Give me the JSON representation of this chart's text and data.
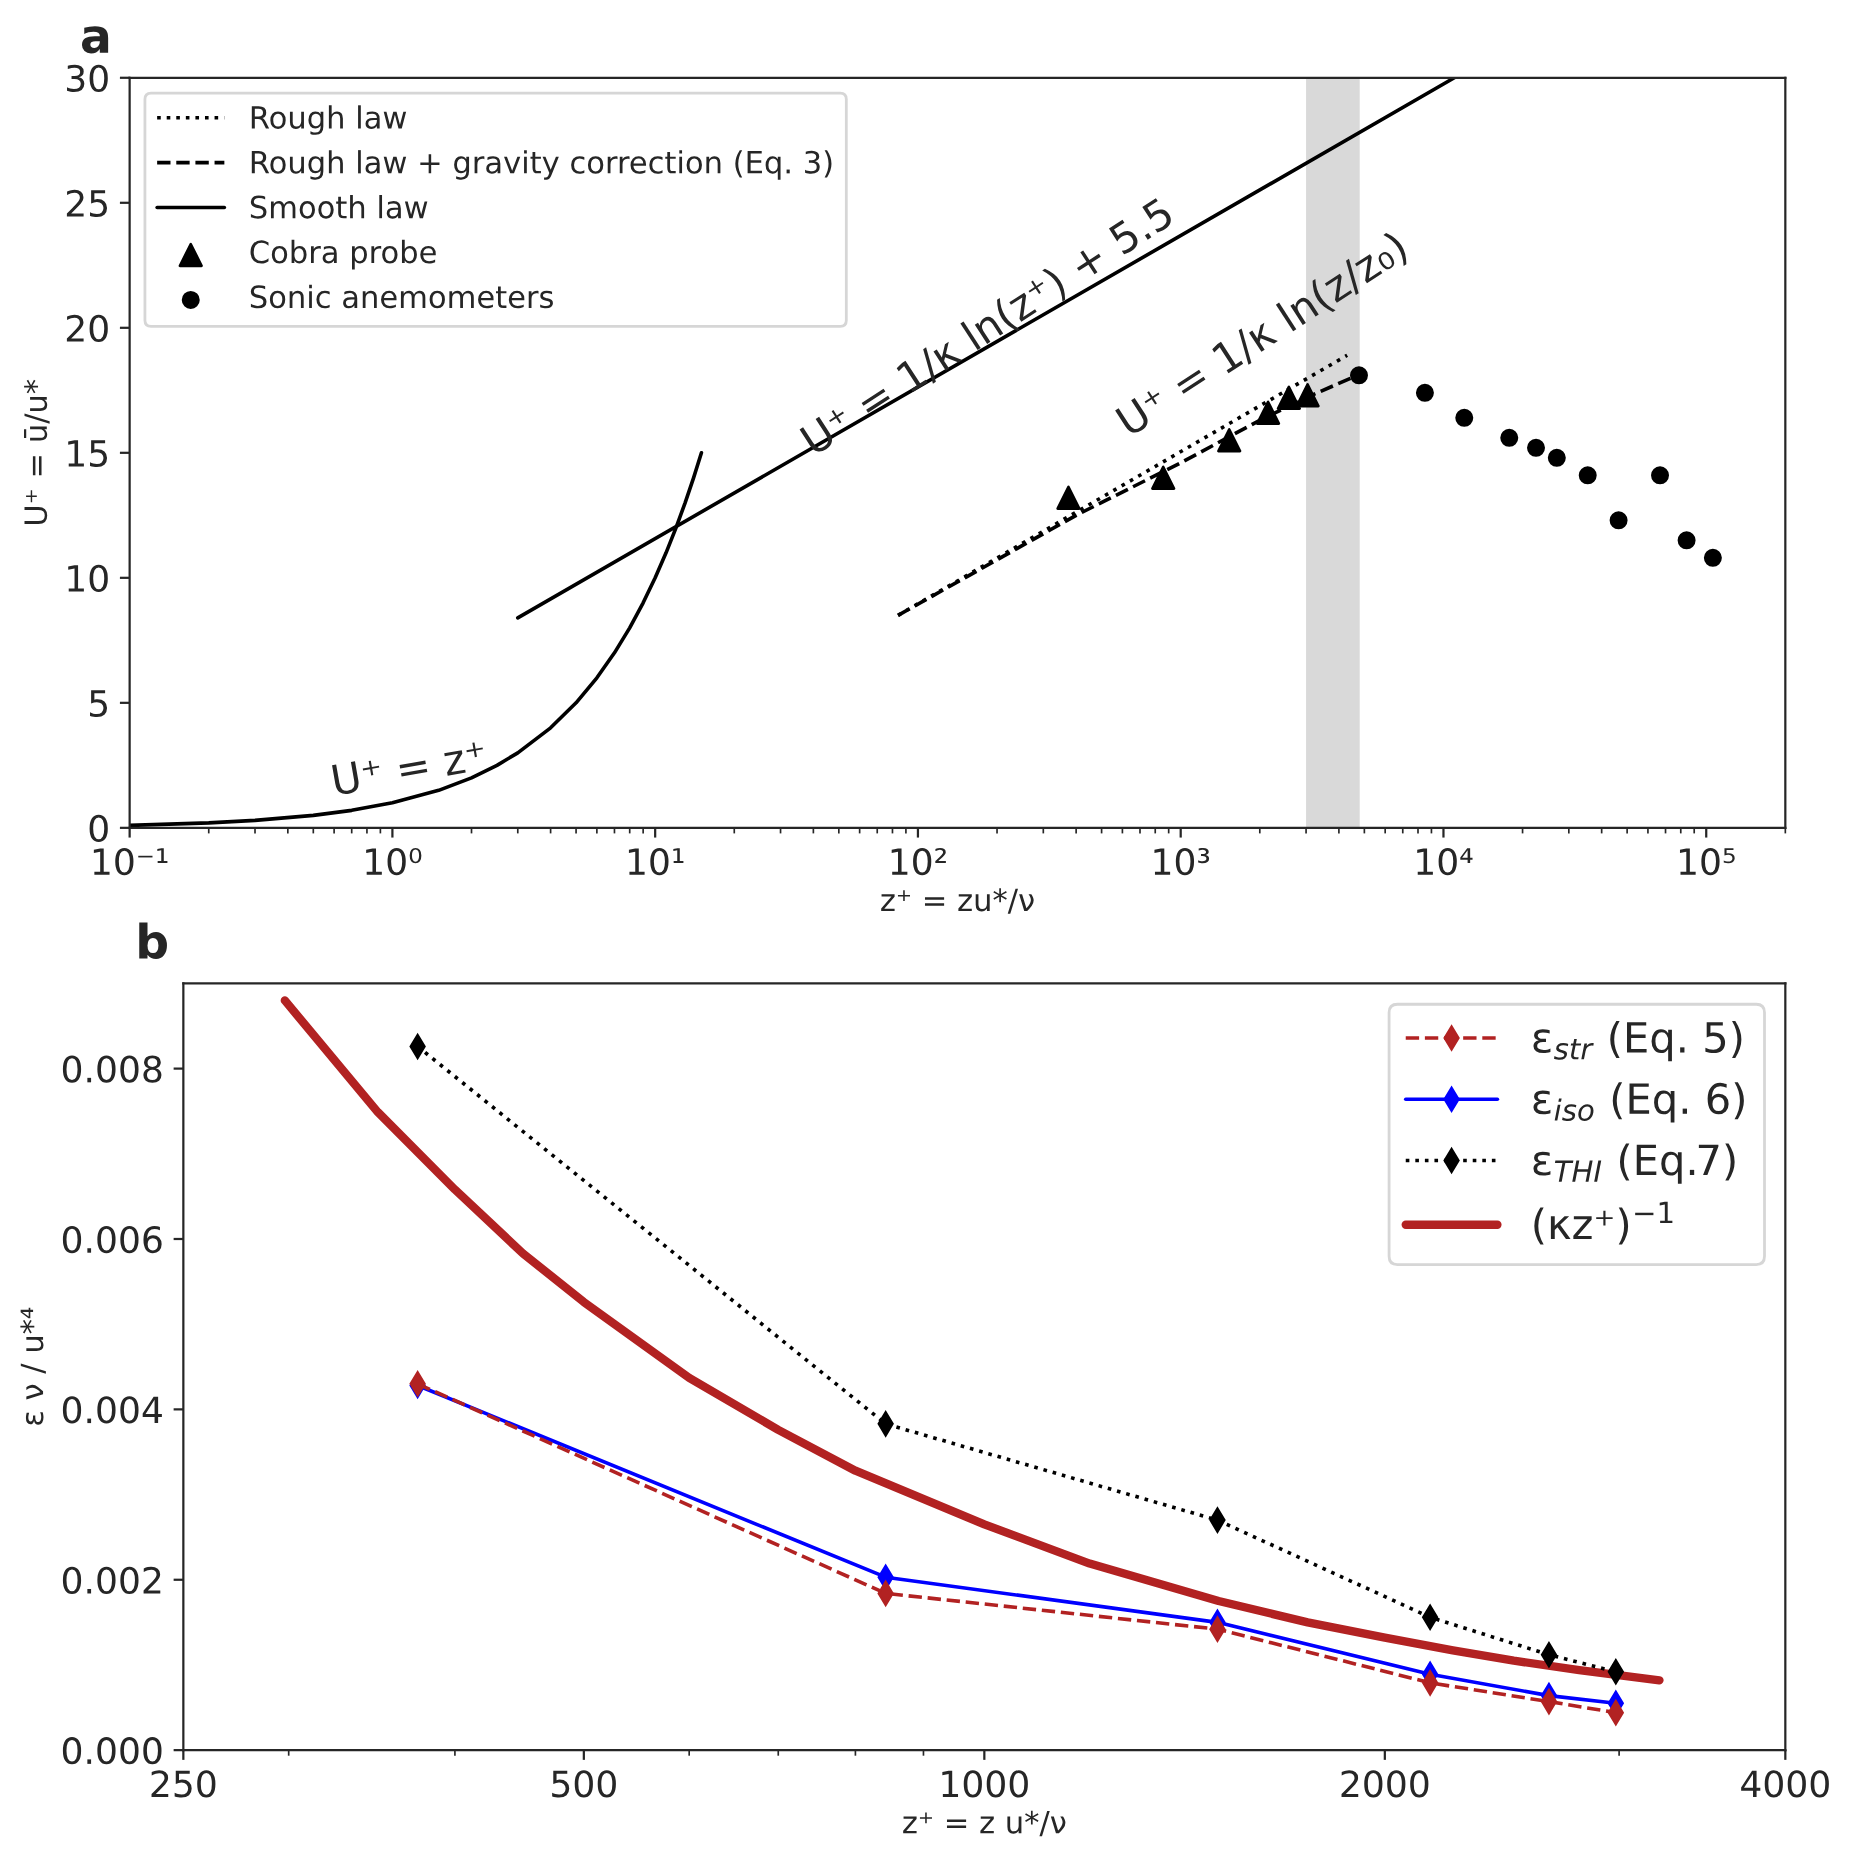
{
  "chart_data": [
    {
      "type": "line",
      "title": "a",
      "xlabel": "z⁺ = zu*/ν",
      "ylabel": "U⁺ = ū/u*",
      "log": "x",
      "xlim": [
        0.1,
        200000
      ],
      "ylim": [
        0,
        30
      ],
      "xticks": [
        {
          "value": 0.1,
          "label": "10⁻¹"
        },
        {
          "value": 1,
          "label": "10⁰"
        },
        {
          "value": 10,
          "label": "10¹"
        },
        {
          "value": 100,
          "label": "10²"
        },
        {
          "value": 1000,
          "label": "10³"
        },
        {
          "value": 10000,
          "label": "10⁴"
        },
        {
          "value": 100000,
          "label": "10⁵"
        }
      ],
      "yticks": [
        0,
        5,
        10,
        15,
        20,
        25,
        30
      ],
      "grid": false,
      "legend": "top left",
      "bands": [
        {
          "axis": "x",
          "from": 3000,
          "to": 4800,
          "color": "#d9d9d9"
        }
      ],
      "series": [
        {
          "name": "Rough law",
          "type": "line",
          "color": "#000000",
          "line_style": "dotted",
          "marker": "none",
          "x": [
            84,
            4300
          ],
          "values": [
            8.5,
            18.9
          ]
        },
        {
          "name": "Rough law + gravity correction (Eq. 3)",
          "type": "line",
          "color": "#000000",
          "line_style": "dashed",
          "marker": "none",
          "x": [
            84,
            400,
            1000,
            2000,
            3000,
            4700
          ],
          "values": [
            8.5,
            12.5,
            14.6,
            16.3,
            17.2,
            18.1
          ]
        },
        {
          "name": "Smooth law",
          "type": "line",
          "color": "#000000",
          "line_style": "solid",
          "marker": "none",
          "x": [
            3,
            11000
          ],
          "values": [
            8.4,
            30
          ]
        },
        {
          "type": "line",
          "color": "#000000",
          "line_style": "solid",
          "marker": "none",
          "x": [
            0.1,
            0.2,
            0.3,
            0.5,
            0.7,
            1,
            1.5,
            2,
            2.5,
            3,
            4,
            5,
            6,
            7,
            8,
            9,
            10,
            11,
            12,
            13,
            14,
            15
          ],
          "values": [
            0.1,
            0.2,
            0.3,
            0.5,
            0.7,
            1,
            1.5,
            2,
            2.5,
            3,
            4,
            5,
            6,
            7,
            8,
            9,
            10,
            11,
            12,
            13,
            14,
            15
          ]
        },
        {
          "name": "Cobra probe",
          "type": "scatter",
          "color": "#000000",
          "marker": "triangle",
          "x": [
            374,
            858,
            1530,
            2150,
            2580,
            3040
          ],
          "values": [
            13.2,
            14.0,
            15.5,
            16.6,
            17.2,
            17.3
          ]
        },
        {
          "name": "Sonic anemometers",
          "type": "scatter",
          "color": "#000000",
          "marker": "circle",
          "x": [
            4770,
            8500,
            12000,
            17800,
            22500,
            27000,
            35400,
            46400,
            66700,
            84200,
            106000
          ],
          "values": [
            18.1,
            17.4,
            16.4,
            15.6,
            15.2,
            14.8,
            14.1,
            12.3,
            14.1,
            11.5,
            10.8
          ]
        }
      ],
      "annotations": [
        "U⁺ = z⁺",
        "U⁺ = 1/κ ln(z⁺) + 5.5",
        "U⁺ = 1/κ ln(z/z₀)"
      ]
    },
    {
      "type": "line",
      "title": "b",
      "xlabel": "z⁺ = z u*/ν",
      "ylabel": "ε ν / u*⁴",
      "log": "x",
      "xlim": [
        250,
        4000
      ],
      "ylim": [
        0,
        0.009
      ],
      "xticks": [
        250,
        500,
        1000,
        2000,
        4000
      ],
      "yticks": [
        {
          "value": 0,
          "label": "0.000"
        },
        {
          "value": 0.002,
          "label": "0.002"
        },
        {
          "value": 0.004,
          "label": "0.004"
        },
        {
          "value": 0.006,
          "label": "0.006"
        },
        {
          "value": 0.008,
          "label": "0.008"
        }
      ],
      "grid": false,
      "legend": "top right",
      "series": [
        {
          "name": "ε$_{str}$ (Eq. 5)",
          "type": "line",
          "color": "#b22222",
          "line_style": "dashed",
          "marker": "diamond",
          "x": [
            375,
            843,
            1497,
            2163,
            2657,
            2983
          ],
          "values": [
            0.0043,
            0.00184,
            0.00142,
            0.00079,
            0.00057,
            0.00044
          ]
        },
        {
          "name": "ε$_{iso}$ (Eq. 6)",
          "type": "line",
          "color": "#0000ff",
          "line_style": "solid",
          "marker": "diamond",
          "x": [
            375,
            843,
            1497,
            2163,
            2657,
            2983
          ],
          "values": [
            0.00428,
            0.00203,
            0.0015,
            0.00089,
            0.00064,
            0.00055
          ]
        },
        {
          "name": "ε$_{THI}$ (Eq.7)",
          "type": "line",
          "color": "#000000",
          "line_style": "dotted",
          "marker": "diamond",
          "x": [
            375,
            843,
            1497,
            2163,
            2657,
            2983
          ],
          "values": [
            0.00826,
            0.00383,
            0.0027,
            0.00156,
            0.00112,
            0.00092
          ]
        },
        {
          "name": "(κz⁺)$^{−1}$",
          "type": "line",
          "color": "#b22222",
          "line_style": "solid",
          "marker": "none",
          "x": [
            298,
            350,
            400,
            450,
            500,
            600,
            700,
            800,
            1000,
            1200,
            1500,
            1750,
            2000,
            2250,
            2500,
            2800,
            3217
          ],
          "values": [
            0.0088,
            0.00749,
            0.00658,
            0.00583,
            0.00526,
            0.00437,
            0.00376,
            0.00328,
            0.00265,
            0.00219,
            0.00175,
            0.0015,
            0.00132,
            0.00117,
            0.00105,
            0.00094,
            0.00082
          ]
        }
      ]
    }
  ]
}
